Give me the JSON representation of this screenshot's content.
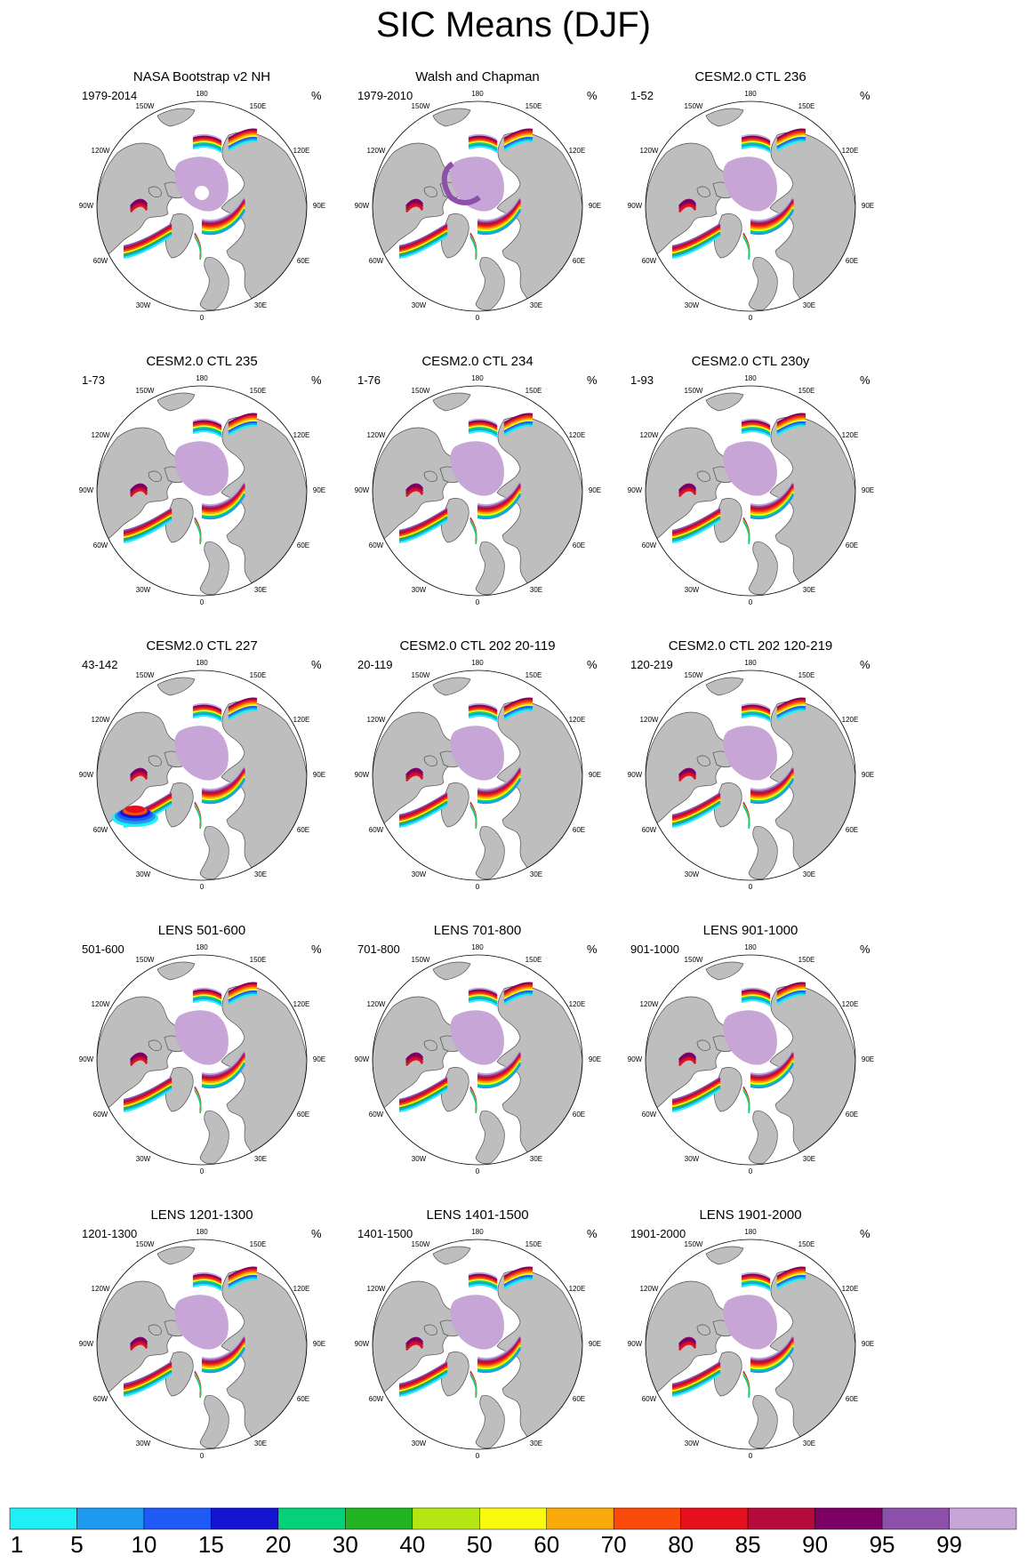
{
  "title": "SIC Means (DJF)",
  "unit_label": "%",
  "meridian_labels": {
    "m180": "180",
    "m150e": "150E",
    "m120e": "120E",
    "m90e": "90E",
    "m60e": "60E",
    "m30e": "30E",
    "m0": "0",
    "m30w": "30W",
    "m60w": "60W",
    "m90w": "90W",
    "m120w": "120W",
    "m150w": "150W"
  },
  "panels": [
    {
      "title": "NASA Bootstrap v2 NH",
      "years": "1979-2014",
      "variant": "obs1"
    },
    {
      "title": "Walsh and Chapman",
      "years": "1979-2010",
      "variant": "obs2"
    },
    {
      "title": "CESM2.0 CTL 236",
      "years": "1-52",
      "variant": "model"
    },
    {
      "title": "CESM2.0 CTL 235",
      "years": "1-73",
      "variant": "model"
    },
    {
      "title": "CESM2.0 CTL 234",
      "years": "1-76",
      "variant": "model"
    },
    {
      "title": "CESM2.0 CTL 230y",
      "years": "1-93",
      "variant": "model"
    },
    {
      "title": "CESM2.0 CTL 227",
      "years": "43-142",
      "variant": "model227"
    },
    {
      "title": "CESM2.0 CTL 202 20-119",
      "years": "20-119",
      "variant": "model"
    },
    {
      "title": "CESM2.0 CTL 202 120-219",
      "years": "120-219",
      "variant": "model"
    },
    {
      "title": "LENS 501-600",
      "years": "501-600",
      "variant": "lens"
    },
    {
      "title": "LENS 701-800",
      "years": "701-800",
      "variant": "lens"
    },
    {
      "title": "LENS 901-1000",
      "years": "901-1000",
      "variant": "lens"
    },
    {
      "title": "LENS 1201-1300",
      "years": "1201-1300",
      "variant": "lens"
    },
    {
      "title": "LENS 1401-1500",
      "years": "1401-1500",
      "variant": "lens"
    },
    {
      "title": "LENS 1901-2000",
      "years": "1901-2000",
      "variant": "lens"
    }
  ],
  "colorbar": {
    "labels": [
      "1",
      "5",
      "10",
      "15",
      "20",
      "30",
      "40",
      "50",
      "60",
      "70",
      "80",
      "85",
      "90",
      "95",
      "99"
    ],
    "colors": [
      "#1ef0f5",
      "#1e9bf0",
      "#1e5af5",
      "#1414d2",
      "#05d278",
      "#23b423",
      "#b4e614",
      "#fafa0f",
      "#faaa0a",
      "#fa4b0a",
      "#e60f1e",
      "#b40a3c",
      "#7d0064",
      "#8c50aa",
      "#c8a5d7"
    ]
  },
  "colors": {
    "land": "#bebebe",
    "ocean": "#ffffff",
    "ice_core": "#c8a5d7",
    "coast": "#505050"
  }
}
